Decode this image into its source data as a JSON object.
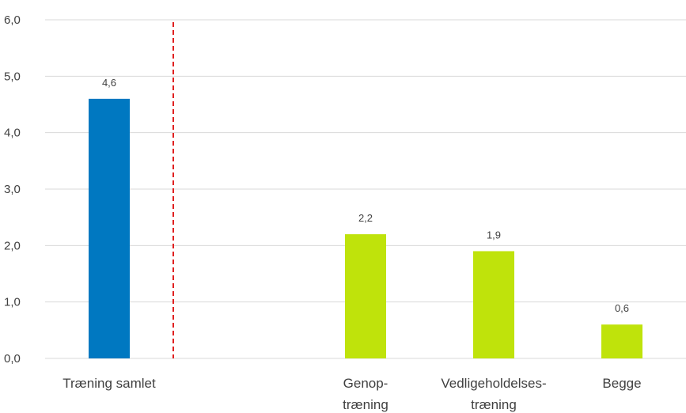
{
  "chart_data": {
    "type": "bar",
    "title": "",
    "xlabel": "",
    "ylabel": "",
    "ylim": [
      0,
      6
    ],
    "yticks": [
      "0,0",
      "1,0",
      "2,0",
      "3,0",
      "4,0",
      "5,0",
      "6,0"
    ],
    "grid": true,
    "categories": [
      [
        "Træning samlet"
      ],
      [],
      [
        "Genop-",
        "træning"
      ],
      [
        "Vedligeholdelses-",
        "træning"
      ],
      [
        "Begge"
      ]
    ],
    "values": [
      4.6,
      null,
      2.2,
      1.9,
      0.6
    ],
    "data_labels": [
      "4,6",
      "",
      "2,2",
      "1,9",
      "0,6"
    ],
    "bar_colors": [
      "#0078c1",
      "",
      "#bfe30b",
      "#bfe30b",
      "#bfe30b"
    ],
    "divider": {
      "after_category": 0,
      "color": "#e02020",
      "style": "dashed"
    },
    "gridline_color": "#d9d9d9"
  }
}
